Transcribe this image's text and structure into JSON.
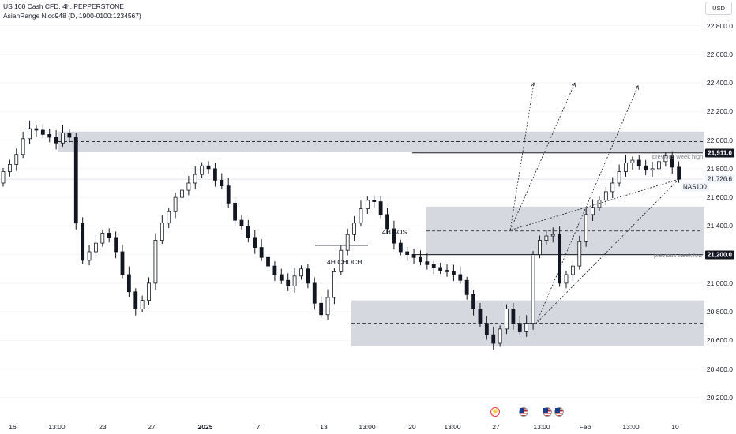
{
  "legend": {
    "line1": "US 100 Cash CFD, 4h, PEPPERSTONE",
    "line2": "AsianRange Nico948 (D, 1900-0100:1234567)"
  },
  "currency": "USD",
  "price_axis": {
    "ticks": [
      "22,800.0",
      "22,600.0",
      "22,400.0",
      "22,200.0",
      "22,000.0",
      "21,800.0",
      "21,600.0",
      "21,400.0",
      "21,200.0",
      "21,000.0",
      "20,800.0",
      "20,600.0",
      "20,400.0",
      "20,200.0"
    ],
    "tick_values": [
      22800,
      22600,
      22400,
      22200,
      22000,
      21800,
      21600,
      21400,
      21200,
      21000,
      20800,
      20600,
      20400,
      20200
    ],
    "labels": {
      "week_high": "21,911.0",
      "current": "21,726.6",
      "week_low": "21,200.0"
    }
  },
  "symbol_tag": "NAS100",
  "time_axis": {
    "ticks": [
      {
        "label": "16",
        "bold": false
      },
      {
        "label": "13:00",
        "bold": false
      },
      {
        "label": "23",
        "bold": false
      },
      {
        "label": "27",
        "bold": false
      },
      {
        "label": "2025",
        "bold": true
      },
      {
        "label": "7",
        "bold": false
      },
      {
        "label": "13",
        "bold": false
      },
      {
        "label": "13:00",
        "bold": false
      },
      {
        "label": "20",
        "bold": false
      },
      {
        "label": "13:00",
        "bold": false
      },
      {
        "label": "27",
        "bold": false
      },
      {
        "label": "13:00",
        "bold": false
      },
      {
        "label": "Feb",
        "bold": false
      },
      {
        "label": "13:00",
        "bold": false
      },
      {
        "label": "10",
        "bold": false
      }
    ]
  },
  "annotations": {
    "previous_week_high": "previous week high",
    "previous_week_low": "previous week low",
    "choch": "4H CHOCH",
    "bos": "4H BOS"
  },
  "events": [
    {
      "type": "flash",
      "icon": "flash-icon"
    },
    {
      "type": "us-flag",
      "icon": "us-flag-icon"
    },
    {
      "type": "us-flag",
      "icon": "us-flag-icon"
    },
    {
      "type": "us-flag",
      "icon": "us-flag-icon"
    }
  ],
  "colors": {
    "up": "#131722",
    "up_body": "#ffffff",
    "down": "#131722",
    "zone": "#d1d4dc",
    "line": "#131722"
  },
  "chart_data": {
    "type": "candlestick",
    "price_range": [
      20100,
      22980
    ],
    "key_levels": {
      "previous_week_high": 21911,
      "previous_week_low": 21200,
      "last": 21726.6
    },
    "zones": [
      {
        "from": 21920,
        "to": 22060,
        "mid": 21990
      },
      {
        "from": 21195,
        "to": 21535,
        "mid": 21365
      },
      {
        "from": 20560,
        "to": 20880,
        "mid": 20720
      }
    ],
    "closes": [
      21780,
      21830,
      21900,
      22010,
      22080,
      22070,
      22040,
      22020,
      21980,
      22050,
      22020,
      21420,
      21160,
      21220,
      21280,
      21350,
      21320,
      21220,
      21060,
      20940,
      20820,
      20880,
      21000,
      21300,
      21420,
      21500,
      21600,
      21650,
      21700,
      21760,
      21820,
      21800,
      21720,
      21680,
      21560,
      21440,
      21400,
      21320,
      21250,
      21180,
      21120,
      21060,
      21020,
      20980,
      21050,
      21100,
      21000,
      20860,
      20780,
      20900,
      21080,
      21230,
      21340,
      21420,
      21520,
      21580,
      21570,
      21480,
      21380,
      21280,
      21220,
      21200,
      21180,
      21150,
      21130,
      21110,
      21090,
      21080,
      21060,
      21020,
      20920,
      20820,
      20720,
      20640,
      20580,
      20680,
      20820,
      20720,
      20660,
      20720,
      21200,
      21300,
      21330,
      21340,
      21000,
      21060,
      21120,
      21290,
      21480,
      21530,
      21580,
      21640,
      21700,
      21780,
      21840,
      21860,
      21820,
      21790,
      21800,
      21850,
      21890,
      21811,
      21726.6
    ],
    "draw_plan": [
      {
        "from_last": true,
        "to": 21370
      },
      {
        "to": 22400
      },
      {
        "from_last": true,
        "to": 20720
      },
      {
        "to": 22400
      },
      {
        "to": 22380
      }
    ]
  }
}
